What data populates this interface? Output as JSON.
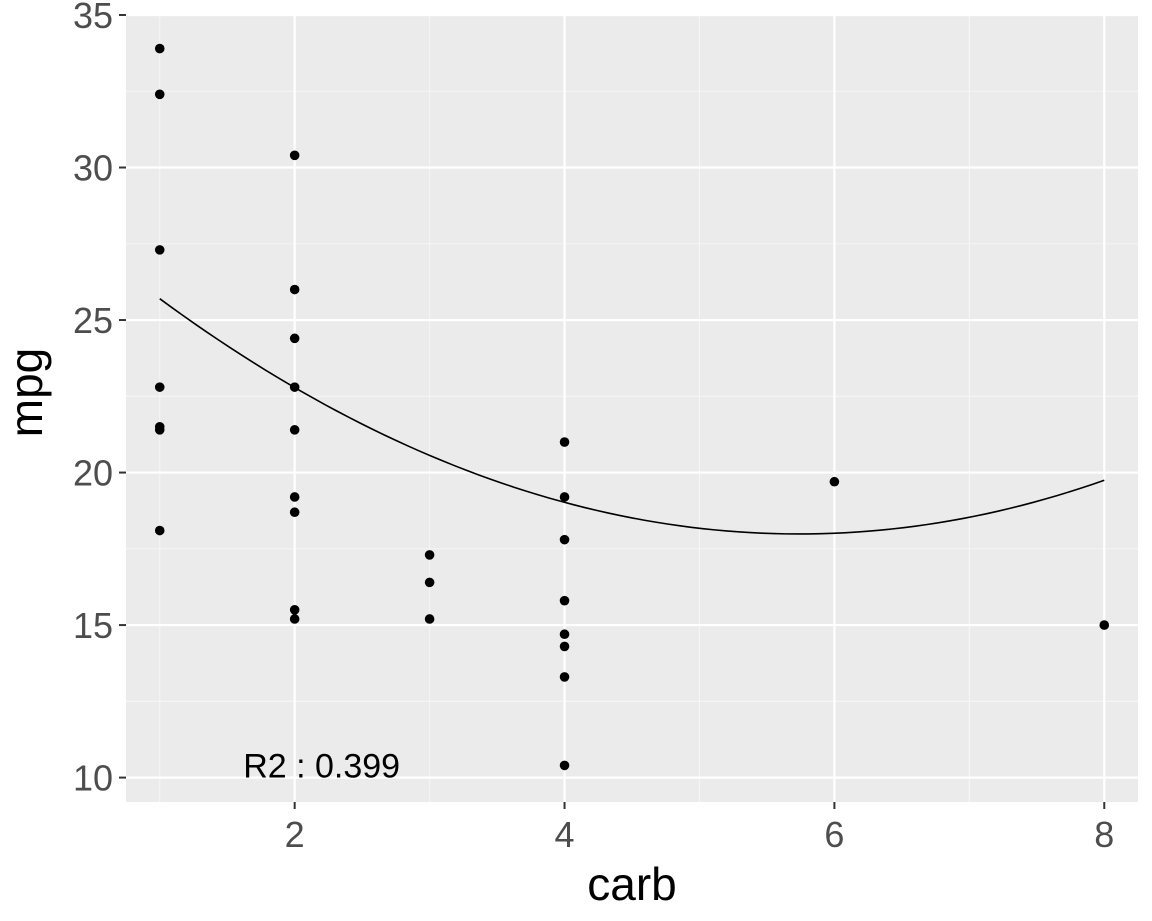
{
  "chart_data": {
    "type": "scatter",
    "xlabel": "carb",
    "ylabel": "mpg",
    "xlim": [
      0.75,
      8.25
    ],
    "ylim": [
      9.2,
      35.0
    ],
    "x_ticks": [
      2,
      4,
      6,
      8
    ],
    "y_ticks": [
      10,
      15,
      20,
      25,
      30,
      35
    ],
    "grid": true,
    "points": [
      {
        "x": 1,
        "y": 33.9
      },
      {
        "x": 1,
        "y": 32.4
      },
      {
        "x": 1,
        "y": 27.3
      },
      {
        "x": 1,
        "y": 22.8
      },
      {
        "x": 1,
        "y": 21.5
      },
      {
        "x": 1,
        "y": 21.4
      },
      {
        "x": 1,
        "y": 18.1
      },
      {
        "x": 2,
        "y": 30.4
      },
      {
        "x": 2,
        "y": 26.0
      },
      {
        "x": 2,
        "y": 24.4
      },
      {
        "x": 2,
        "y": 22.8
      },
      {
        "x": 2,
        "y": 21.4
      },
      {
        "x": 2,
        "y": 19.2
      },
      {
        "x": 2,
        "y": 18.7
      },
      {
        "x": 2,
        "y": 15.5
      },
      {
        "x": 2,
        "y": 15.2
      },
      {
        "x": 3,
        "y": 17.3
      },
      {
        "x": 3,
        "y": 16.4
      },
      {
        "x": 3,
        "y": 15.2
      },
      {
        "x": 4,
        "y": 21.0
      },
      {
        "x": 4,
        "y": 19.2
      },
      {
        "x": 4,
        "y": 17.8
      },
      {
        "x": 4,
        "y": 15.8
      },
      {
        "x": 4,
        "y": 14.7
      },
      {
        "x": 4,
        "y": 14.3
      },
      {
        "x": 4,
        "y": 13.3
      },
      {
        "x": 4,
        "y": 10.4
      },
      {
        "x": 6,
        "y": 19.7
      },
      {
        "x": 8,
        "y": 15.0
      }
    ],
    "fit_curve": {
      "type": "quadratic",
      "coefficients": {
        "a": 0.3437,
        "b": -3.9438,
        "c": 29.3
      },
      "x_range": [
        1,
        8
      ]
    },
    "annotation": {
      "text": "R2 : 0.399",
      "x": 2.2,
      "y": 10.4
    },
    "colors": {
      "panel_background": "#ebebeb",
      "grid_major": "#ffffff",
      "grid_minor": "#f5f5f5",
      "point": "#000000",
      "line": "#000000"
    }
  }
}
